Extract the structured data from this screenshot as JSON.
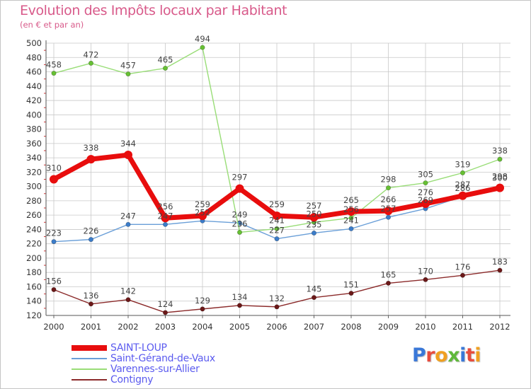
{
  "title": "Evolution des Impôts locaux par Habitant",
  "subtitle": "(en € et par an)",
  "brand": [
    "P",
    "r",
    "o",
    "x",
    "i",
    "t",
    "i"
  ],
  "colors": {
    "title": "#d85a8a",
    "legend_text": "#5b5bef",
    "grid": "#c8c8c8",
    "axis_tick_red": "#cc3333",
    "brand": [
      "#3a78d8",
      "#e84c3d",
      "#f0a020",
      "#5fb83a",
      "#3a78d8",
      "#e84c3d",
      "#f0a020"
    ]
  },
  "chart_data": {
    "type": "line",
    "title": "Evolution des Impôts locaux par Habitant",
    "subtitle": "(en € et par an)",
    "x": [
      "2000",
      "2001",
      "2002",
      "2003",
      "2004",
      "2005",
      "2006",
      "2007",
      "2008",
      "2009",
      "2010",
      "2011",
      "2012"
    ],
    "ylim": [
      120,
      500
    ],
    "yticks": [
      120,
      140,
      160,
      180,
      200,
      220,
      240,
      260,
      280,
      300,
      320,
      340,
      360,
      380,
      400,
      420,
      440,
      460,
      480,
      500
    ],
    "grid": true,
    "legend_position": "bottom-left",
    "series": [
      {
        "name": "SAINT-LOUP",
        "color": "#e80d0d",
        "marker_fill": "#e80d0d",
        "emphasis": "thick",
        "values": [
          310,
          338,
          344,
          256,
          259,
          297,
          259,
          257,
          265,
          266,
          276,
          287,
          298
        ],
        "labels": [
          "310",
          "338",
          "344",
          "256",
          "259",
          "297",
          "259",
          "257",
          "265",
          "266",
          "276",
          "287",
          "298"
        ]
      },
      {
        "name": "Saint-Gérand-de-Vaux",
        "color": "#6a9fd8",
        "marker_fill": "#3b7cc9",
        "emphasis": "normal",
        "values": [
          223,
          226,
          247,
          247,
          252,
          249,
          227,
          235,
          241,
          257,
          269,
          286,
          300
        ],
        "labels": [
          "223",
          "226",
          "247",
          "247",
          "252",
          "249",
          "227",
          "235",
          "241",
          "257",
          "269",
          "286",
          "300"
        ]
      },
      {
        "name": "Varennes-sur-Allier",
        "color": "#99dd77",
        "marker_fill": "#66c033",
        "emphasis": "normal",
        "values": [
          458,
          472,
          457,
          465,
          494,
          236,
          241,
          250,
          256,
          298,
          305,
          319,
          338
        ],
        "labels": [
          "458",
          "472",
          "457",
          "465",
          "494",
          "236",
          "241",
          "250",
          "256",
          "298",
          "305",
          "319",
          "338"
        ]
      },
      {
        "name": "Contigny",
        "color": "#8b2a2a",
        "marker_fill": "#6b1818",
        "emphasis": "normal",
        "values": [
          156,
          136,
          142,
          124,
          129,
          134,
          132,
          145,
          151,
          165,
          170,
          176,
          183
        ],
        "labels": [
          "156",
          "136",
          "142",
          "124",
          "129",
          "134",
          "132",
          "145",
          "151",
          "165",
          "170",
          "176",
          "183"
        ]
      }
    ]
  }
}
